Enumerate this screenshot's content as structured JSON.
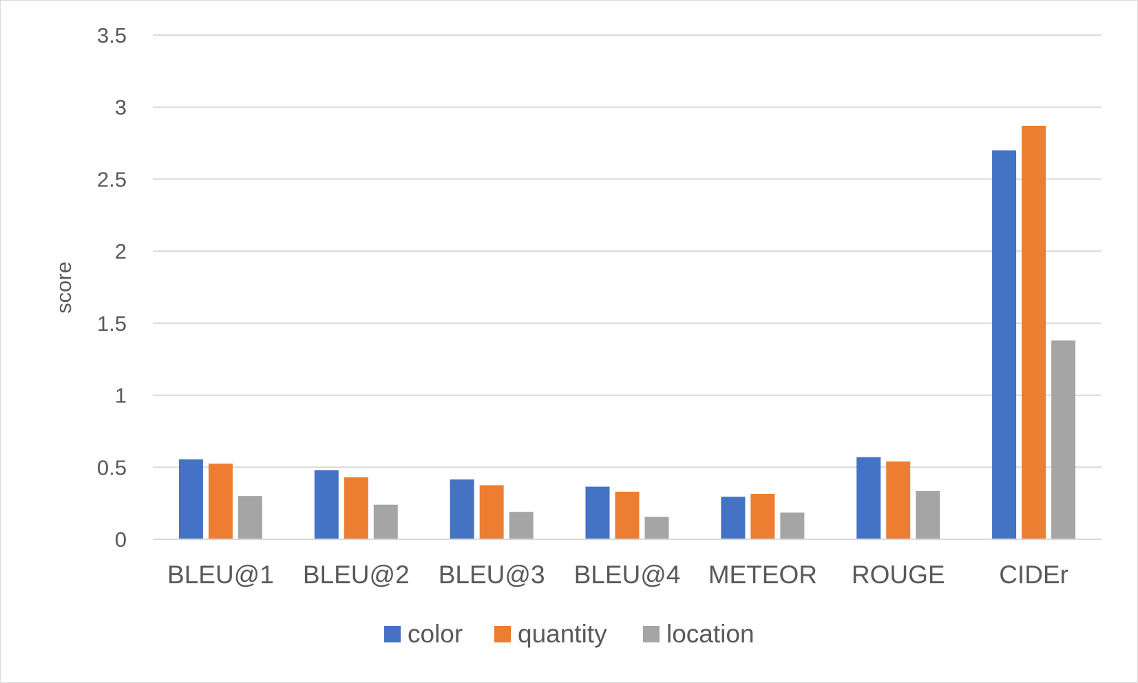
{
  "chart_data": {
    "type": "bar",
    "title": "",
    "xlabel": "",
    "ylabel": "score",
    "ylim": [
      0,
      3.5
    ],
    "yticks": [
      "0",
      "0.5",
      "1",
      "1.5",
      "2",
      "2.5",
      "3",
      "3.5"
    ],
    "grid": true,
    "legend_position": "bottom",
    "categories": [
      "BLEU@1",
      "BLEU@2",
      "BLEU@3",
      "BLEU@4",
      "METEOR",
      "ROUGE",
      "CIDEr"
    ],
    "series": [
      {
        "name": "color",
        "color": "#4472C4",
        "values": [
          0.555,
          0.48,
          0.415,
          0.365,
          0.295,
          0.57,
          2.7
        ]
      },
      {
        "name": "quantity",
        "color": "#ED7D31",
        "values": [
          0.525,
          0.43,
          0.375,
          0.33,
          0.315,
          0.54,
          2.87
        ]
      },
      {
        "name": "location",
        "color": "#A5A5A5",
        "values": [
          0.3,
          0.24,
          0.19,
          0.155,
          0.185,
          0.335,
          1.38
        ]
      }
    ]
  }
}
